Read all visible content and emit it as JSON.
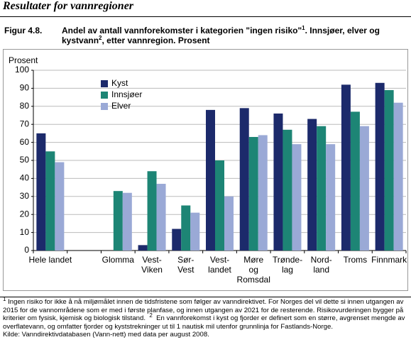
{
  "header": {
    "title": "Resultater for vannregioner"
  },
  "figure_label": "Figur 4.8.",
  "chart_data": {
    "type": "bar",
    "title": [
      [
        "Andel av antall vannforekomster i kategorien \"ingen risiko\"",
        "1",
        ". Innsjøer, elver og"
      ],
      [
        "kystvann",
        "2",
        ", etter vannregion. Prosent"
      ]
    ],
    "ylabel": "Prosent",
    "categories": [
      "Hele landet",
      null,
      "Glomma",
      "Vest-\nViken",
      "Sør-\nVest",
      "Vest-\nlandet",
      "Møre\nog\nRomsdal",
      "Trønde-\nlag",
      "Nord-\nland",
      "Troms",
      "Finnmark"
    ],
    "series": [
      {
        "name": "Kyst",
        "color": "#1c2a6b",
        "values": [
          65,
          null,
          null,
          3,
          12,
          78,
          79,
          76,
          73,
          92,
          93
        ]
      },
      {
        "name": "Innsjøer",
        "color": "#1d8575",
        "values": [
          55,
          null,
          33,
          44,
          25,
          50,
          63,
          67,
          69,
          77,
          89
        ]
      },
      {
        "name": "Elver",
        "color": "#9aa9d6",
        "values": [
          49,
          null,
          32,
          37,
          21,
          30,
          64,
          59,
          59,
          69,
          82
        ]
      }
    ],
    "ylim": [
      0,
      100
    ],
    "yticks": [
      0,
      10,
      20,
      30,
      40,
      50,
      60,
      70,
      80,
      90,
      100
    ],
    "grid": true,
    "legend": "upper left"
  },
  "footnotes": {
    "mark1": "1",
    "text1": "Ingen risiko for ikke å nå miljømålet innen de tidsfristene som følger av vanndirektivet. For Norges del vil dette si innen utgangen av 2015 for de vannområdene som er med i første planfase, og innen utgangen av 2021 for de resterende. Risikovurderingen bygger på kriterier om fysisk, kjemisk og biologisk tilstand.",
    "mark2": "2",
    "text2": "En vannforekomst i kyst og fjorder er definert som en større, avgrenset mengde av overflatevann, og omfatter fjorder og kyststrekninger ut til 1 nautisk mil utenfor grunnlinja for Fastlands-Norge.",
    "source": "Kilde: Vanndirektivdatabasen (Vann-nett) med data per august 2008."
  }
}
